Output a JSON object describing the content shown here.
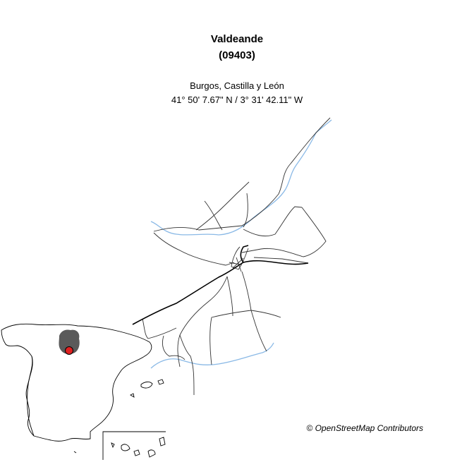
{
  "header": {
    "name": "Valdeande",
    "code": "(09403)",
    "region": "Burgos, Castilla y León",
    "coordinates": "41° 50' 7.67\" N / 3° 31' 42.11\" W"
  },
  "attribution": "© OpenStreetMap Contributors",
  "colors": {
    "road": "#333333",
    "main_road": "#000000",
    "river": "#8ab9e6",
    "province_fill": "#5a5a5a",
    "marker": "#e02020"
  }
}
